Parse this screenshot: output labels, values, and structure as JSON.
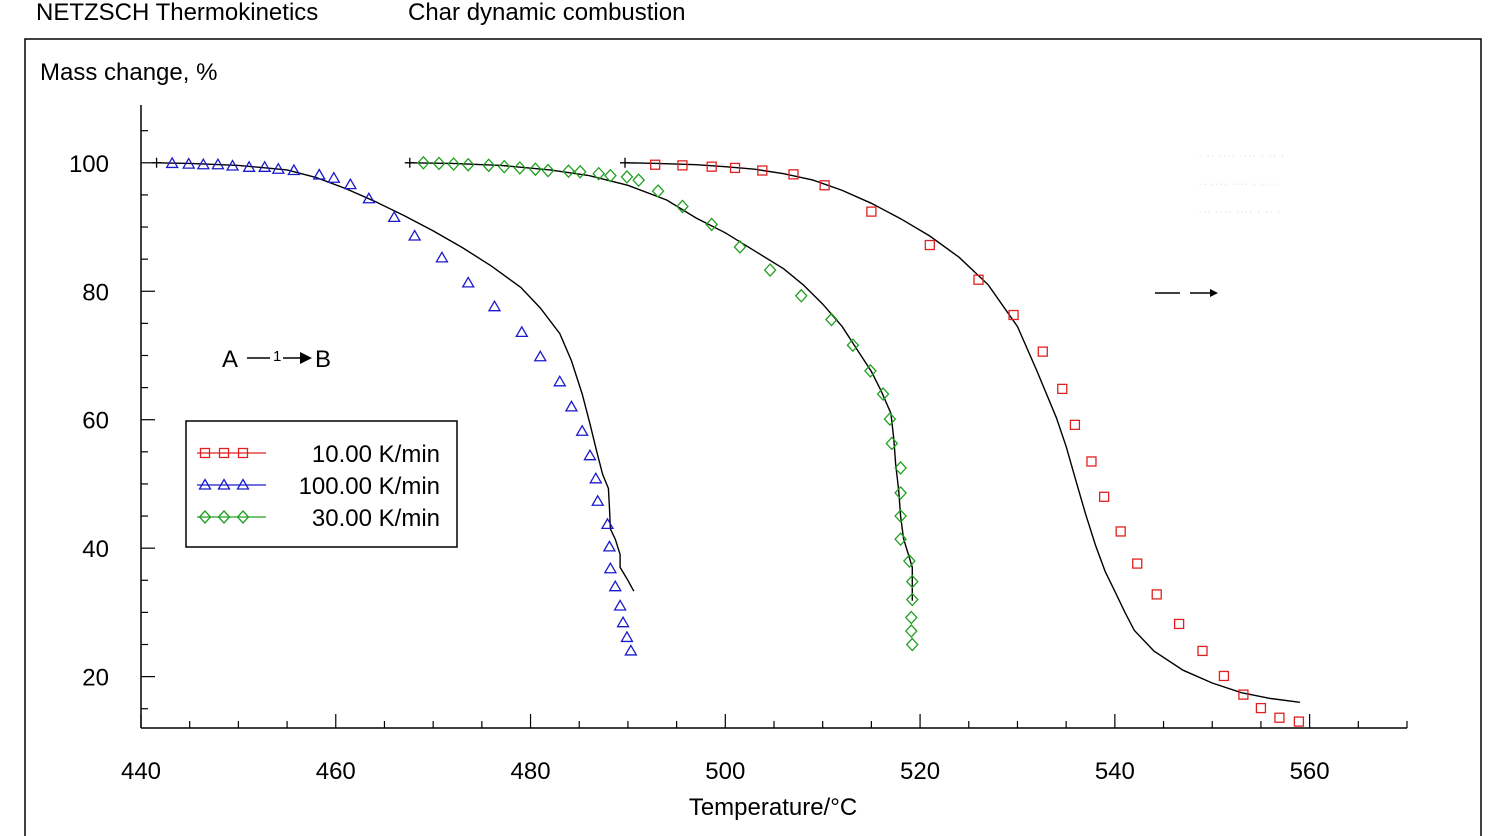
{
  "header": {
    "app_name": "NETZSCH Thermokinetics",
    "title": "Char dynamic combustion"
  },
  "chart_data": {
    "type": "scatter",
    "ylabel": "Mass change, %",
    "xlabel": "Temperature/°C",
    "xlim": [
      440,
      570
    ],
    "ylim": [
      12,
      109
    ],
    "x_ticks": [
      "440",
      "460",
      "480",
      "500",
      "520",
      "540",
      "560"
    ],
    "y_ticks": [
      "20",
      "40",
      "60",
      "80",
      "100"
    ],
    "grid": false,
    "legend_position": "middle-left",
    "reaction_annotation": {
      "from": "A",
      "step": "1",
      "to": "B"
    },
    "series": [
      {
        "name": "10.00 K/min",
        "marker": "square",
        "color": "#e02020",
        "points": [
          [
            492.8,
            99.7
          ],
          [
            495.6,
            99.6
          ],
          [
            498.6,
            99.4
          ],
          [
            501.0,
            99.2
          ],
          [
            503.8,
            98.8
          ],
          [
            507.0,
            98.2
          ],
          [
            510.2,
            96.5
          ],
          [
            515.0,
            92.4
          ],
          [
            521.0,
            87.2
          ],
          [
            526.0,
            81.8
          ],
          [
            529.6,
            76.3
          ],
          [
            532.6,
            70.6
          ],
          [
            534.6,
            64.8
          ],
          [
            535.9,
            59.2
          ],
          [
            537.6,
            53.5
          ],
          [
            538.9,
            48.0
          ],
          [
            540.6,
            42.6
          ],
          [
            542.3,
            37.6
          ],
          [
            544.3,
            32.8
          ],
          [
            546.6,
            28.2
          ],
          [
            549.0,
            24.0
          ],
          [
            551.2,
            20.1
          ],
          [
            553.2,
            17.2
          ],
          [
            555.0,
            15.1
          ],
          [
            556.9,
            13.6
          ],
          [
            558.9,
            13.0
          ]
        ],
        "fit": [
          [
            489.7,
            100.0
          ],
          [
            493,
            99.9
          ],
          [
            497,
            99.7
          ],
          [
            500,
            99.4
          ],
          [
            503,
            99.0
          ],
          [
            506,
            98.3
          ],
          [
            509,
            97.3
          ],
          [
            512,
            95.7
          ],
          [
            515,
            93.7
          ],
          [
            518,
            91.3
          ],
          [
            521,
            88.6
          ],
          [
            524,
            85.3
          ],
          [
            527,
            81.0
          ],
          [
            530,
            74.5
          ],
          [
            532,
            67.6
          ],
          [
            534,
            60.3
          ],
          [
            535,
            55.8
          ],
          [
            536,
            50.5
          ],
          [
            537,
            45.3
          ],
          [
            538,
            40.5
          ],
          [
            539,
            36.4
          ],
          [
            540,
            33.3
          ],
          [
            541,
            30.1
          ],
          [
            542,
            27.2
          ],
          [
            544,
            24.0
          ],
          [
            547,
            21.0
          ],
          [
            550,
            19.0
          ],
          [
            553,
            17.5
          ],
          [
            556,
            16.6
          ],
          [
            559,
            16.0
          ]
        ]
      },
      {
        "name": "100.00 K/min",
        "marker": "triangle",
        "color": "#1a1acc",
        "points": [
          [
            443.2,
            99.9
          ],
          [
            444.9,
            99.8
          ],
          [
            446.4,
            99.7
          ],
          [
            447.9,
            99.7
          ],
          [
            449.4,
            99.5
          ],
          [
            451.1,
            99.3
          ],
          [
            452.7,
            99.3
          ],
          [
            454.1,
            99.0
          ],
          [
            455.7,
            98.8
          ],
          [
            458.3,
            98.1
          ],
          [
            459.8,
            97.6
          ],
          [
            461.5,
            96.6
          ],
          [
            463.4,
            94.4
          ],
          [
            466.0,
            91.5
          ],
          [
            468.1,
            88.6
          ],
          [
            470.9,
            85.2
          ],
          [
            473.6,
            81.3
          ],
          [
            476.3,
            77.6
          ],
          [
            479.1,
            73.6
          ],
          [
            481.0,
            69.8
          ],
          [
            483.0,
            65.9
          ],
          [
            484.2,
            62.0
          ],
          [
            485.3,
            58.2
          ],
          [
            486.1,
            54.4
          ],
          [
            486.7,
            50.8
          ],
          [
            486.9,
            47.3
          ],
          [
            487.9,
            43.7
          ],
          [
            488.1,
            40.2
          ],
          [
            488.2,
            36.8
          ],
          [
            488.7,
            34.0
          ],
          [
            489.2,
            31.0
          ],
          [
            489.5,
            28.4
          ],
          [
            489.9,
            26.1
          ],
          [
            490.3,
            24.0
          ]
        ],
        "fit": [
          [
            441.6,
            100.0
          ],
          [
            445,
            99.9
          ],
          [
            450,
            99.6
          ],
          [
            455,
            98.9
          ],
          [
            458,
            97.7
          ],
          [
            461,
            96.0
          ],
          [
            464,
            94.0
          ],
          [
            467,
            91.8
          ],
          [
            470,
            89.4
          ],
          [
            473,
            86.8
          ],
          [
            476,
            83.9
          ],
          [
            479,
            80.6
          ],
          [
            481,
            77.4
          ],
          [
            483,
            73.4
          ],
          [
            484.2,
            69.2
          ],
          [
            485.3,
            64.0
          ],
          [
            486.1,
            59.4
          ],
          [
            486.8,
            55.0
          ],
          [
            487.4,
            51.5
          ],
          [
            488.0,
            49.3
          ],
          [
            488.1,
            46.5
          ],
          [
            488.2,
            43.0
          ],
          [
            488.7,
            41.4
          ],
          [
            489.2,
            39.0
          ],
          [
            489.2,
            37.0
          ],
          [
            490.0,
            35.0
          ],
          [
            490.6,
            33.3
          ]
        ]
      },
      {
        "name": "30.00 K/min",
        "marker": "diamond",
        "color": "#20a020",
        "points": [
          [
            469.0,
            100.0
          ],
          [
            470.6,
            99.9
          ],
          [
            472.1,
            99.8
          ],
          [
            473.6,
            99.7
          ],
          [
            475.7,
            99.6
          ],
          [
            477.3,
            99.4
          ],
          [
            478.9,
            99.2
          ],
          [
            480.5,
            99.0
          ],
          [
            481.8,
            98.8
          ],
          [
            483.9,
            98.7
          ],
          [
            485.1,
            98.6
          ],
          [
            487.0,
            98.3
          ],
          [
            488.2,
            98.0
          ],
          [
            489.9,
            97.8
          ],
          [
            491.1,
            97.3
          ],
          [
            493.1,
            95.6
          ],
          [
            495.6,
            93.2
          ],
          [
            498.6,
            90.4
          ],
          [
            501.5,
            86.9
          ],
          [
            504.6,
            83.3
          ],
          [
            507.8,
            79.3
          ],
          [
            510.9,
            75.6
          ],
          [
            513.1,
            71.6
          ],
          [
            514.9,
            67.6
          ],
          [
            516.2,
            64.0
          ],
          [
            516.9,
            60.1
          ],
          [
            517.1,
            56.3
          ],
          [
            518.0,
            52.5
          ],
          [
            518.0,
            48.6
          ],
          [
            518.0,
            45.0
          ],
          [
            518.0,
            41.4
          ],
          [
            518.9,
            38.0
          ],
          [
            519.2,
            34.8
          ],
          [
            519.2,
            32.0
          ],
          [
            519.1,
            29.2
          ],
          [
            519.1,
            27.1
          ],
          [
            519.2,
            25.0
          ]
        ],
        "fit": [
          [
            467.6,
            100.0
          ],
          [
            472,
            99.9
          ],
          [
            477,
            99.6
          ],
          [
            482,
            98.9
          ],
          [
            486,
            98.0
          ],
          [
            490,
            96.5
          ],
          [
            494,
            94.2
          ],
          [
            497,
            91.4
          ],
          [
            500,
            89.1
          ],
          [
            503,
            86.3
          ],
          [
            506,
            83.5
          ],
          [
            508,
            81.0
          ],
          [
            510,
            78.0
          ],
          [
            512,
            74.5
          ],
          [
            513.5,
            71.0
          ],
          [
            515,
            67.5
          ],
          [
            516,
            64.5
          ],
          [
            517.0,
            61.0
          ],
          [
            517.3,
            57.0
          ],
          [
            517.5,
            53.0
          ],
          [
            517.8,
            49.0
          ],
          [
            518.0,
            45.0
          ],
          [
            518.3,
            41.5
          ],
          [
            518.8,
            39.0
          ],
          [
            519.2,
            37.0
          ],
          [
            519.2,
            33.5
          ],
          [
            519.2,
            31.8
          ]
        ]
      }
    ]
  }
}
